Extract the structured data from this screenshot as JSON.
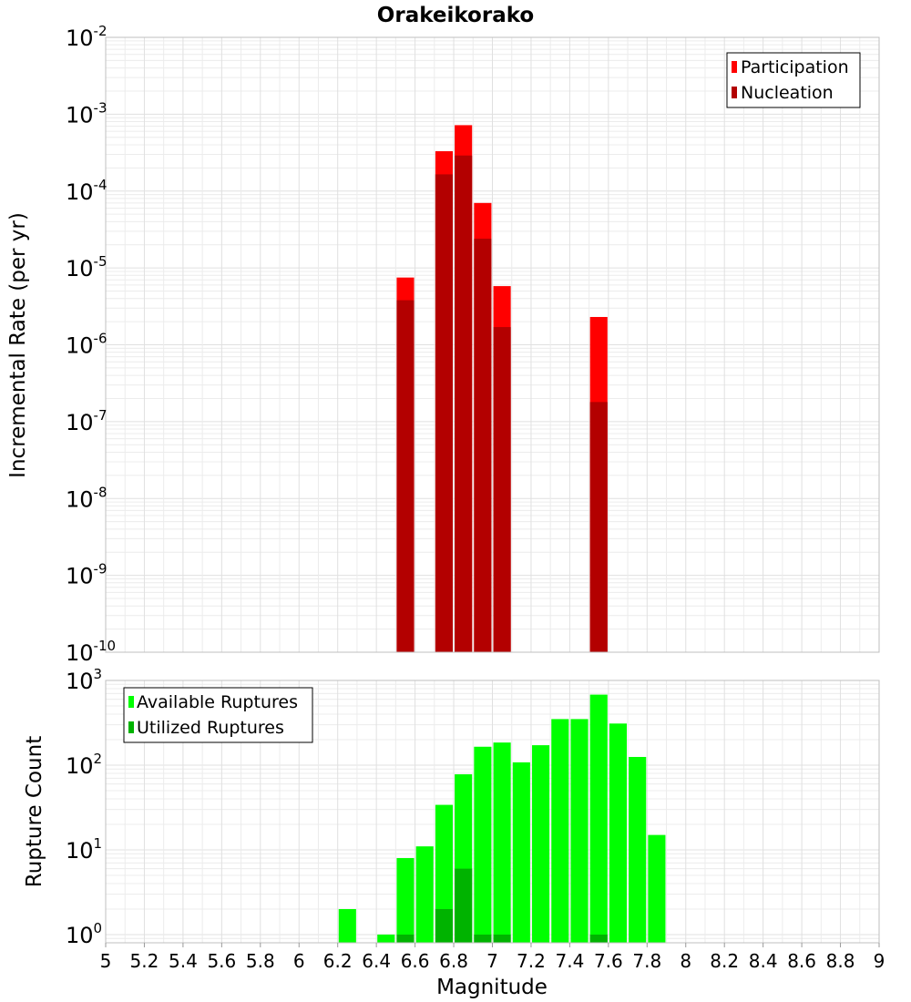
{
  "title": "Orakeikorako",
  "chart_data": [
    {
      "type": "bar",
      "ylabel": "Incremental Rate (per yr)",
      "yscale": "log",
      "ylim": [
        1e-10,
        0.01
      ],
      "xlim": [
        5,
        9
      ],
      "grid": true,
      "legend_position": "top-right",
      "y_ticks": [
        {
          "base": "10",
          "exp": "-10"
        },
        {
          "base": "10",
          "exp": "-9"
        },
        {
          "base": "10",
          "exp": "-8"
        },
        {
          "base": "10",
          "exp": "-7"
        },
        {
          "base": "10",
          "exp": "-6"
        },
        {
          "base": "10",
          "exp": "-5"
        },
        {
          "base": "10",
          "exp": "-4"
        },
        {
          "base": "10",
          "exp": "-3"
        },
        {
          "base": "10",
          "exp": "-2"
        }
      ],
      "series": [
        {
          "name": "Participation",
          "color": "#ff0000",
          "points": [
            {
              "x": 6.55,
              "y": 7.5e-06
            },
            {
              "x": 6.75,
              "y": 0.00033
            },
            {
              "x": 6.85,
              "y": 0.00072
            },
            {
              "x": 6.95,
              "y": 7e-05
            },
            {
              "x": 7.05,
              "y": 5.8e-06
            },
            {
              "x": 7.55,
              "y": 2.3e-06
            }
          ]
        },
        {
          "name": "Nucleation",
          "color": "#b30000",
          "points": [
            {
              "x": 6.55,
              "y": 3.8e-06
            },
            {
              "x": 6.75,
              "y": 0.000165
            },
            {
              "x": 6.85,
              "y": 0.00029
            },
            {
              "x": 6.95,
              "y": 2.4e-05
            },
            {
              "x": 7.05,
              "y": 1.7e-06
            },
            {
              "x": 7.55,
              "y": 1.8e-07
            }
          ]
        }
      ]
    },
    {
      "type": "bar",
      "xlabel": "Magnitude",
      "ylabel": "Rupture Count",
      "yscale": "log",
      "ylim": [
        0.8,
        1000
      ],
      "xlim": [
        5,
        9
      ],
      "grid": true,
      "legend_position": "top-left",
      "y_ticks": [
        {
          "base": "10",
          "exp": "0"
        },
        {
          "base": "10",
          "exp": "1"
        },
        {
          "base": "10",
          "exp": "2"
        },
        {
          "base": "10",
          "exp": "3"
        }
      ],
      "x_ticks": [
        "5",
        "5.2",
        "5.4",
        "5.6",
        "5.8",
        "6",
        "6.2",
        "6.4",
        "6.6",
        "6.8",
        "7",
        "7.2",
        "7.4",
        "7.6",
        "7.8",
        "8",
        "8.2",
        "8.4",
        "8.6",
        "8.8",
        "9"
      ],
      "series": [
        {
          "name": "Available Ruptures",
          "color": "#00ff00",
          "points": [
            {
              "x": 6.25,
              "y": 2
            },
            {
              "x": 6.45,
              "y": 1
            },
            {
              "x": 6.55,
              "y": 8
            },
            {
              "x": 6.65,
              "y": 11
            },
            {
              "x": 6.75,
              "y": 34
            },
            {
              "x": 6.85,
              "y": 78
            },
            {
              "x": 6.95,
              "y": 165
            },
            {
              "x": 7.05,
              "y": 185
            },
            {
              "x": 7.15,
              "y": 108
            },
            {
              "x": 7.25,
              "y": 172
            },
            {
              "x": 7.35,
              "y": 350
            },
            {
              "x": 7.45,
              "y": 350
            },
            {
              "x": 7.55,
              "y": 680
            },
            {
              "x": 7.65,
              "y": 310
            },
            {
              "x": 7.75,
              "y": 125
            },
            {
              "x": 7.85,
              "y": 15
            }
          ]
        },
        {
          "name": "Utilized Ruptures",
          "color": "#00b300",
          "points": [
            {
              "x": 6.55,
              "y": 1
            },
            {
              "x": 6.75,
              "y": 2
            },
            {
              "x": 6.85,
              "y": 6
            },
            {
              "x": 6.95,
              "y": 1
            },
            {
              "x": 7.05,
              "y": 1
            },
            {
              "x": 7.55,
              "y": 1
            }
          ]
        }
      ]
    }
  ]
}
